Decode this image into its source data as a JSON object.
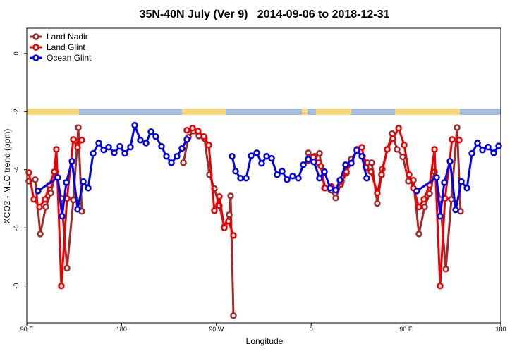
{
  "chart_data": {
    "type": "line",
    "title": "35N-40N July (Ver 9)   2014-09-06 to 2018-12-31",
    "x_label": "Longitude",
    "y_label": "XCO2 - MLO trend (ppm)",
    "xlim": [
      90,
      540
    ],
    "ylim": [
      -9.27,
      0.87
    ],
    "xticks": [
      {
        "value": 90,
        "label": "90 E"
      },
      {
        "value": 180,
        "label": "180"
      },
      {
        "value": 270,
        "label": "90 W"
      },
      {
        "value": 360,
        "label": "0"
      },
      {
        "value": 450,
        "label": "90 E"
      },
      {
        "value": 540,
        "label": "180"
      }
    ],
    "yticks": [
      0,
      -2,
      -4,
      -6,
      -8
    ],
    "legend": "top-left",
    "series": [
      {
        "name": "Land Nadir",
        "color": "#a52a2a",
        "x": [
          92.0,
          98.0,
          102.8,
          108.1,
          112.8,
          117.5,
          122.8,
          128.2,
          134.2,
          138.9,
          142.2,
          null,
          238.7,
          243.4,
          248.0,
          253.4,
          258.7,
          263.4,
          268.1,
          272.8,
          277.5,
          282.2,
          283.5,
          286.2,
          null,
          357.2,
          363.2,
          367.9,
          372.6,
          378.6,
          383.3,
          388.0,
          393.4,
          398.0,
          403.4,
          408.8,
          413.4,
          417.5,
          422.8,
          427.5,
          432.2,
          436.9,
          441.6,
          447.0,
          452.3,
          457.0,
          462.3,
          467.7,
          472.4,
          477.1,
          482.4,
          487.8,
          493.1,
          498.5,
          501.8
        ],
        "values": [
          -4.39,
          -4.34,
          -6.21,
          -5.28,
          -4.8,
          -4.07,
          -4.99,
          -7.39,
          -5.04,
          -2.55,
          -5.43,
          null,
          -3.76,
          -2.88,
          -2.67,
          -2.84,
          -2.93,
          -4.17,
          -4.65,
          -5.24,
          -5.96,
          -5.55,
          -4.9,
          -9.02,
          null,
          -3.42,
          -3.54,
          -3.44,
          -4.63,
          -4.7,
          -4.97,
          -4.51,
          -4.12,
          -3.64,
          -3.35,
          -3.54,
          -3.76,
          -3.76,
          -5.16,
          -3.98,
          -3.3,
          -2.76,
          -3.3,
          -3.56,
          -4.39,
          -4.36,
          -6.21,
          -5.28,
          -4.82,
          -4.07,
          -5.02,
          -7.42,
          -5.02,
          -2.55,
          -5.43
        ]
      },
      {
        "name": "Land Glint",
        "color": "#ee0000",
        "x": [
          92.0,
          96.7,
          102.1,
          107.4,
          111.4,
          116.1,
          118.1,
          122.8,
          128.2,
          134.2,
          138.2,
          142.2,
          null,
          242.0,
          247.4,
          252.7,
          258.1,
          262.8,
          268.1,
          272.8,
          277.5,
          281.5,
          286.2,
          null,
          357.2,
          361.9,
          367.2,
          369.2,
          373.2,
          379.2,
          383.9,
          388.7,
          393.4,
          398.0,
          403.4,
          408.1,
          412.1,
          416.8,
          422.8,
          426.8,
          432.2,
          437.6,
          443.0,
          448.3,
          453.0,
          457.0,
          462.3,
          467.0,
          472.4,
          477.1,
          482.4,
          487.1,
          493.8,
          500.5
        ],
        "values": [
          -4.1,
          -5.02,
          -5.28,
          -5.02,
          -4.53,
          -4.07,
          -3.3,
          -8.0,
          -4.99,
          -2.96,
          -3.23,
          -2.98,
          null,
          -2.64,
          -2.57,
          -2.67,
          -2.86,
          -3.15,
          -5.41,
          -4.92,
          -6.0,
          -5.77,
          -6.26,
          null,
          -3.69,
          -3.57,
          -3.76,
          -3.88,
          -4.63,
          -4.58,
          -4.7,
          -4.41,
          -4.07,
          -3.77,
          -3.3,
          -3.23,
          -3.93,
          -4.07,
          -4.8,
          -4.17,
          -3.3,
          -2.93,
          -2.57,
          -3.15,
          -4.17,
          -4.63,
          -5.28,
          -5.02,
          -4.53,
          -3.3,
          -8.0,
          -4.99,
          -2.96,
          -2.98
        ]
      },
      {
        "name": "Ocean Glint",
        "color": "#0000ee",
        "x": [
          100.7,
          119.5,
          123.5,
          127.5,
          132.9,
          138.2,
          143.6,
          148.3,
          153.0,
          158.3,
          163.0,
          167.7,
          173.0,
          178.4,
          183.1,
          188.4,
          192.5,
          197.8,
          203.2,
          207.9,
          212.5,
          217.9,
          222.6,
          227.3,
          232.6,
          237.3,
          242.0,
          null,
          284.9,
          288.2,
          292.9,
          298.3,
          303.0,
          308.3,
          313.0,
          317.7,
          322.4,
          327.7,
          332.4,
          337.1,
          342.5,
          347.8,
          352.5,
          357.2,
          362.6,
          367.9,
          372.6,
          378.0,
          383.3,
          387.3,
          392.7,
          398.0,
          403.4,
          408.1,
          412.8,
          null,
          460.3,
          479.1,
          482.4,
          486.4,
          491.8,
          497.2,
          502.5,
          507.9,
          512.6,
          517.9,
          522.6,
          528.0,
          533.3,
          538.0
        ],
        "values": [
          -4.73,
          -4.27,
          -5.6,
          -4.44,
          -3.71,
          -5.36,
          -4.41,
          -4.63,
          -3.44,
          -3.08,
          -3.32,
          -3.22,
          -3.42,
          -3.2,
          -3.44,
          -3.22,
          -2.47,
          -2.98,
          -3.08,
          -2.69,
          -2.86,
          -3.2,
          -3.54,
          -3.76,
          -3.54,
          -3.27,
          -2.96,
          null,
          -3.54,
          -4.05,
          -4.29,
          -4.29,
          -3.52,
          -3.42,
          -3.78,
          -3.54,
          -3.61,
          -4.17,
          -4.05,
          -4.34,
          -4.22,
          -4.29,
          -3.83,
          -3.64,
          -3.73,
          -4.29,
          -4.07,
          -4.63,
          -4.7,
          -4.36,
          -3.83,
          -3.78,
          -3.32,
          -3.54,
          -4.29,
          null,
          -4.73,
          -4.27,
          -5.6,
          -4.44,
          -3.71,
          -5.38,
          -4.41,
          -4.63,
          -3.44,
          -3.08,
          -3.32,
          -3.22,
          -3.42,
          -3.18
        ]
      }
    ]
  }
}
